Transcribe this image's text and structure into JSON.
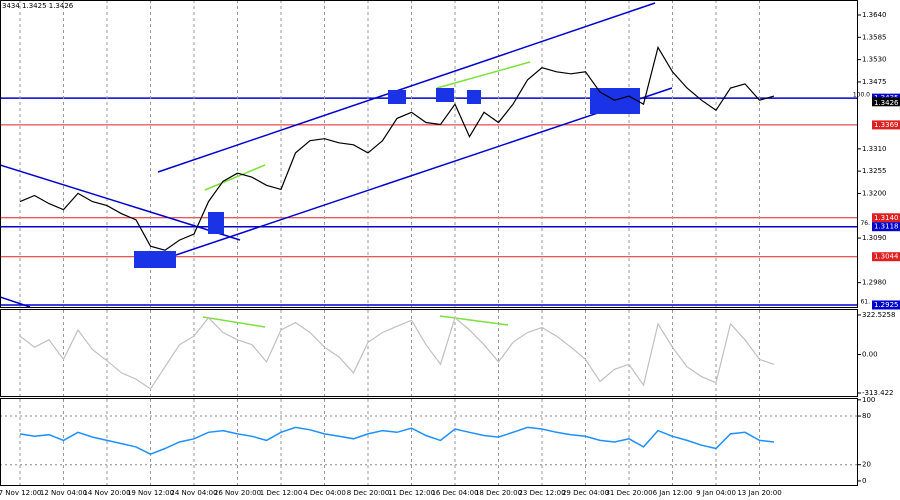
{
  "header_text": "3434 1.3425 1.3426",
  "chart_data": [
    {
      "type": "line",
      "color": "#000000",
      "ylim": [
        1.292,
        1.3677
      ],
      "yticks": [
        {
          "value": 1.364,
          "label": "1.3640"
        },
        {
          "value": 1.3585,
          "label": "1.3585"
        },
        {
          "value": 1.353,
          "label": "1.3530"
        },
        {
          "value": 1.3475,
          "label": "1.3475"
        },
        {
          "value": 1.331,
          "label": "1.3310"
        },
        {
          "value": 1.3255,
          "label": "1.3255"
        },
        {
          "value": 1.32,
          "label": "1.3200"
        },
        {
          "value": 1.309,
          "label": "1.3090"
        },
        {
          "value": 1.298,
          "label": "1.2980"
        }
      ],
      "levels": [
        {
          "value": 1.3435,
          "label": "1.3435",
          "color": "#0000cd",
          "note": "100.0"
        },
        {
          "value": 1.3369,
          "label": "1.3369",
          "color": "#e02020"
        },
        {
          "value": 1.314,
          "label": "1.3140",
          "color": "#e02020"
        },
        {
          "value": 1.3118,
          "label": "1.3118",
          "color": "#0000cd",
          "note": "76."
        },
        {
          "value": 1.3044,
          "label": "1.3044",
          "color": "#e02020"
        },
        {
          "value": 1.2925,
          "label": "1.2925",
          "color": "#0000cd",
          "note": "61."
        }
      ],
      "current_price": {
        "value": 1.3426,
        "label": "1.3426"
      },
      "values": [
        1.318,
        1.3195,
        1.3175,
        1.316,
        1.32,
        1.318,
        1.317,
        1.315,
        1.3135,
        1.307,
        1.306,
        1.3085,
        1.31,
        1.318,
        1.323,
        1.325,
        1.324,
        1.322,
        1.321,
        1.33,
        1.333,
        1.3335,
        1.3325,
        1.332,
        1.33,
        1.333,
        1.3385,
        1.34,
        1.3375,
        1.337,
        1.342,
        1.334,
        1.34,
        1.3375,
        1.342,
        1.348,
        1.351,
        1.35,
        1.3495,
        1.35,
        1.345,
        1.343,
        1.344,
        1.342,
        1.356,
        1.35,
        1.346,
        1.343,
        1.3405,
        1.346,
        1.347,
        1.343,
        1.344
      ]
    },
    {
      "type": "line",
      "color": "#c0c0c0",
      "ylim": [
        -338,
        363
      ],
      "yticks": [
        {
          "value": 322.5258,
          "label": "322.5258"
        },
        {
          "value": 0,
          "label": "0.00"
        },
        {
          "value": -313.422,
          "label": "-313.422"
        }
      ],
      "values": [
        150,
        60,
        120,
        -40,
        200,
        40,
        -50,
        -150,
        -200,
        -280,
        -100,
        80,
        150,
        300,
        180,
        120,
        80,
        -60,
        200,
        260,
        180,
        60,
        -20,
        -150,
        100,
        180,
        230,
        280,
        80,
        -80,
        300,
        200,
        80,
        -60,
        100,
        180,
        220,
        150,
        60,
        -40,
        -220,
        -120,
        -80,
        -250,
        250,
        60,
        -100,
        -180,
        -230,
        250,
        120,
        -40,
        -80
      ]
    },
    {
      "type": "line",
      "color": "#1e90ff",
      "ylim": [
        -5,
        101
      ],
      "yticks": [
        100,
        80,
        20,
        0
      ],
      "categories": [
        "7 Nov 12:00",
        null,
        null,
        "12 Nov 04:00",
        null,
        null,
        "14 Nov 20:00",
        null,
        null,
        "19 Nov 12:00",
        null,
        null,
        "24 Nov 04:00",
        null,
        null,
        "26 Nov 20:00",
        null,
        null,
        "1 Dec 12:00",
        null,
        null,
        "4 Dec 04:00",
        null,
        null,
        "8 Dec 20:00",
        null,
        null,
        "11 Dec 12:00",
        null,
        null,
        "16 Dec 04:00",
        null,
        null,
        "18 Dec 20:00",
        null,
        null,
        "23 Dec 12:00",
        null,
        null,
        "29 Dec 04:00",
        null,
        null,
        "31 Dec 20:00",
        null,
        null,
        "6 Jan 12:00",
        null,
        null,
        "9 Jan 04:00",
        null,
        null,
        "13 Jan 20:00",
        null
      ],
      "values": [
        58,
        55,
        57,
        50,
        60,
        54,
        50,
        46,
        42,
        33,
        40,
        48,
        52,
        60,
        62,
        58,
        55,
        50,
        60,
        66,
        63,
        58,
        55,
        52,
        58,
        62,
        60,
        65,
        56,
        50,
        64,
        60,
        56,
        54,
        60,
        66,
        64,
        60,
        57,
        55,
        50,
        48,
        52,
        42,
        62,
        55,
        50,
        44,
        40,
        58,
        60,
        50,
        48
      ]
    }
  ]
}
